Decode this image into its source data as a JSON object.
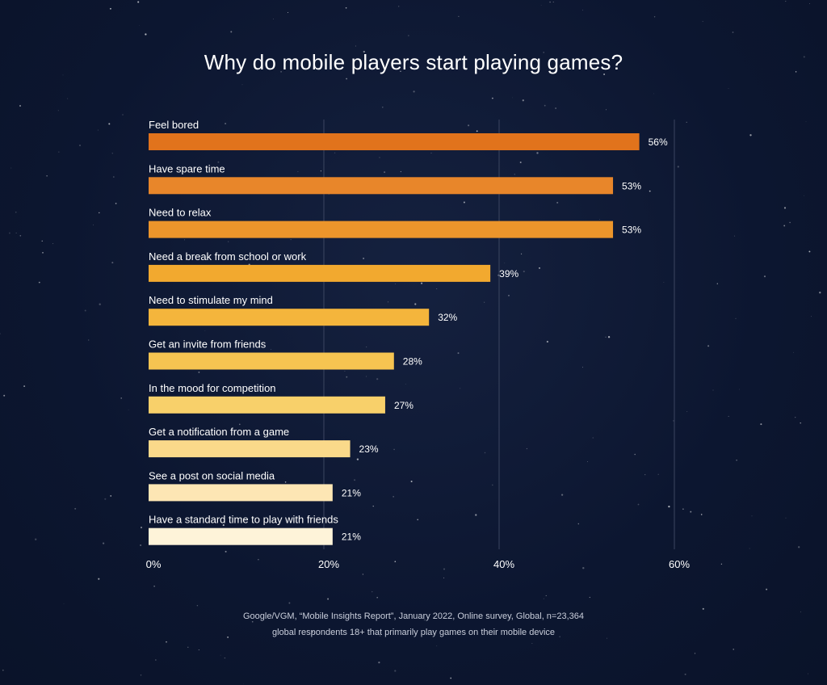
{
  "colors": {
    "background": "#0d1833",
    "gridline": "#3b4560",
    "text": "#ffffff"
  },
  "chart_data": {
    "type": "bar",
    "orientation": "horizontal",
    "title": "Why do mobile players start playing games?",
    "categories": [
      "Feel bored",
      "Have spare time",
      "Need to relax",
      "Need a break from school or work",
      "Need to stimulate my mind",
      "Get an invite from friends",
      "In the mood for competition",
      "Get a notification from a game",
      "See a post on social media",
      "Have a standard time to play with friends"
    ],
    "values": [
      56,
      53,
      53,
      39,
      32,
      28,
      27,
      23,
      21,
      21
    ],
    "value_labels": [
      "56%",
      "53%",
      "53%",
      "39%",
      "32%",
      "28%",
      "27%",
      "23%",
      "21%",
      "21%"
    ],
    "bar_colors": [
      "#e1731c",
      "#e8862a",
      "#ec952b",
      "#f2a92f",
      "#f4b53c",
      "#f6c451",
      "#f8d06a",
      "#fad98a",
      "#fde6b4",
      "#fef3d9"
    ],
    "xlim": [
      0,
      60
    ],
    "xticks": [
      0,
      20,
      40,
      60
    ],
    "xtick_labels": [
      "0%",
      "20%",
      "40%",
      "60%"
    ],
    "grid": true,
    "legend": "none"
  },
  "source": {
    "line1": "Google/VGM, “Mobile Insights Report”, January 2022, Online survey, Global, n=23,364",
    "line2": "global respondents 18+ that primarily play games on their mobile device"
  }
}
